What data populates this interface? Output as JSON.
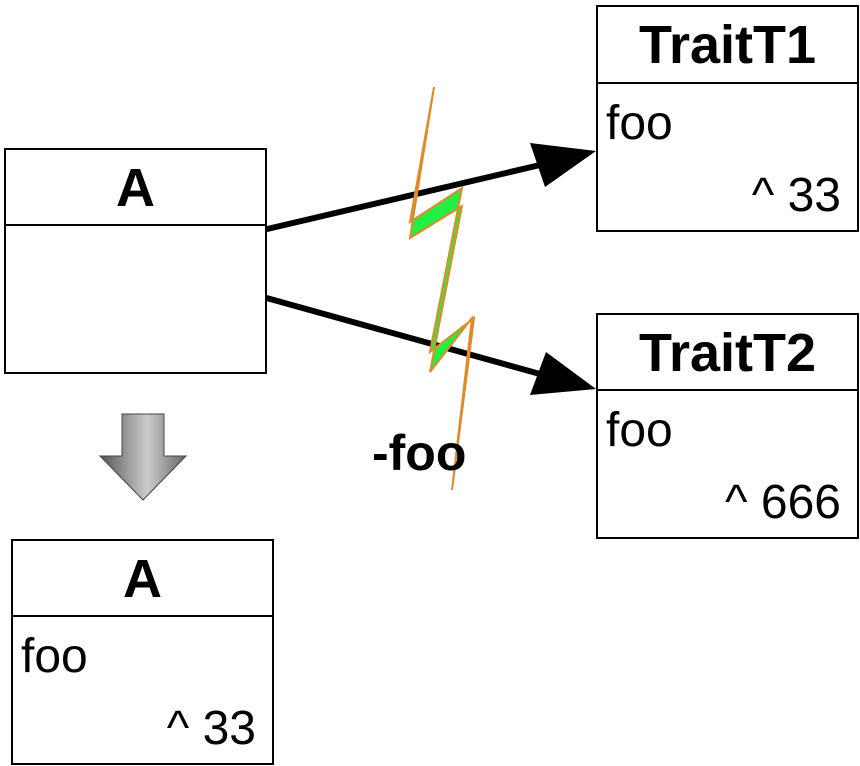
{
  "source_class": {
    "name": "A"
  },
  "trait_t1": {
    "name": "TraitT1",
    "method": "foo",
    "return_stmt": "^ 33"
  },
  "trait_t2": {
    "name": "TraitT2",
    "method": "foo",
    "return_stmt": "^ 666"
  },
  "exclusion": {
    "label": "-foo"
  },
  "result_class": {
    "name": "A",
    "method": "foo",
    "return_stmt": "^ 33"
  },
  "icons": {
    "lightning": "lightning-bolt-icon",
    "down_arrow": "down-arrow-icon"
  },
  "colors": {
    "lightning_fill": "#22ee44",
    "lightning_stroke": "#e08a2a",
    "arrow_gray_dark": "#555555",
    "arrow_gray_light": "#cccccc"
  }
}
